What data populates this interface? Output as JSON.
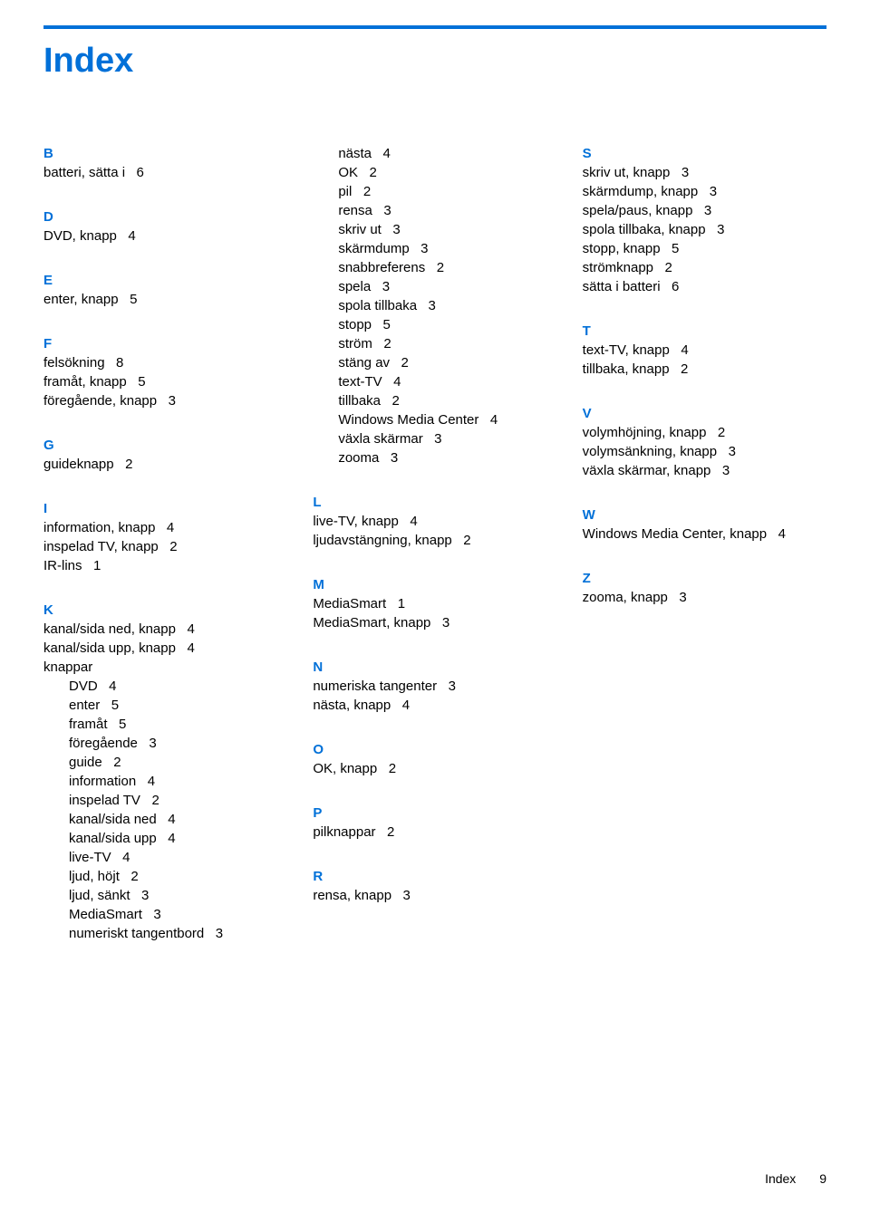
{
  "title": "Index",
  "brand_color": "#0070d8",
  "text_color": "#000000",
  "background_color": "#ffffff",
  "font_family": "Arial",
  "body_fontsize": 15,
  "title_fontsize": 38,
  "columns": [
    [
      {
        "type": "head",
        "text": "B"
      },
      {
        "type": "entry",
        "text": "batteri, sätta i   6"
      },
      {
        "type": "gap"
      },
      {
        "type": "head",
        "text": "D"
      },
      {
        "type": "entry",
        "text": "DVD, knapp   4"
      },
      {
        "type": "gap"
      },
      {
        "type": "head",
        "text": "E"
      },
      {
        "type": "entry",
        "text": "enter, knapp   5"
      },
      {
        "type": "gap"
      },
      {
        "type": "head",
        "text": "F"
      },
      {
        "type": "entry",
        "text": "felsökning   8"
      },
      {
        "type": "entry",
        "text": "framåt, knapp   5"
      },
      {
        "type": "entry",
        "text": "föregående, knapp   3"
      },
      {
        "type": "gap"
      },
      {
        "type": "head",
        "text": "G"
      },
      {
        "type": "entry",
        "text": "guideknapp   2"
      },
      {
        "type": "gap"
      },
      {
        "type": "head",
        "text": "I"
      },
      {
        "type": "entry",
        "text": "information, knapp   4"
      },
      {
        "type": "entry",
        "text": "inspelad TV, knapp   2"
      },
      {
        "type": "entry",
        "text": "IR-lins   1"
      },
      {
        "type": "gap"
      },
      {
        "type": "head",
        "text": "K"
      },
      {
        "type": "entry",
        "text": "kanal/sida ned, knapp   4"
      },
      {
        "type": "entry",
        "text": "kanal/sida upp, knapp   4"
      },
      {
        "type": "entry",
        "text": "knappar"
      },
      {
        "type": "sub",
        "text": "DVD   4"
      },
      {
        "type": "sub",
        "text": "enter   5"
      },
      {
        "type": "sub",
        "text": "framåt   5"
      },
      {
        "type": "sub",
        "text": "föregående   3"
      },
      {
        "type": "sub",
        "text": "guide   2"
      },
      {
        "type": "sub",
        "text": "information   4"
      },
      {
        "type": "sub",
        "text": "inspelad TV   2"
      },
      {
        "type": "sub",
        "text": "kanal/sida ned   4"
      },
      {
        "type": "sub",
        "text": "kanal/sida upp   4"
      },
      {
        "type": "sub",
        "text": "live-TV   4"
      },
      {
        "type": "sub",
        "text": "ljud, höjt   2"
      },
      {
        "type": "sub",
        "text": "ljud, sänkt   3"
      },
      {
        "type": "sub",
        "text": "MediaSmart   3"
      },
      {
        "type": "sub",
        "text": "numeriskt tangentbord   3"
      }
    ],
    [
      {
        "type": "sub",
        "text": "nästa   4"
      },
      {
        "type": "sub",
        "text": "OK   2"
      },
      {
        "type": "sub",
        "text": "pil   2"
      },
      {
        "type": "sub",
        "text": "rensa   3"
      },
      {
        "type": "sub",
        "text": "skriv ut   3"
      },
      {
        "type": "sub",
        "text": "skärmdump   3"
      },
      {
        "type": "sub",
        "text": "snabbreferens   2"
      },
      {
        "type": "sub",
        "text": "spela   3"
      },
      {
        "type": "sub",
        "text": "spola tillbaka   3"
      },
      {
        "type": "sub",
        "text": "stopp   5"
      },
      {
        "type": "sub",
        "text": "ström   2"
      },
      {
        "type": "sub",
        "text": "stäng av   2"
      },
      {
        "type": "sub",
        "text": "text-TV   4"
      },
      {
        "type": "sub",
        "text": "tillbaka   2"
      },
      {
        "type": "sub",
        "text": "Windows Media Center   4"
      },
      {
        "type": "sub",
        "text": "växla skärmar   3"
      },
      {
        "type": "sub",
        "text": "zooma   3"
      },
      {
        "type": "gap"
      },
      {
        "type": "head",
        "text": "L"
      },
      {
        "type": "entry",
        "text": "live-TV, knapp   4"
      },
      {
        "type": "entry",
        "text": "ljudavstängning, knapp   2"
      },
      {
        "type": "gap"
      },
      {
        "type": "head",
        "text": "M"
      },
      {
        "type": "entry",
        "text": "MediaSmart   1"
      },
      {
        "type": "entry",
        "text": "MediaSmart, knapp   3"
      },
      {
        "type": "gap"
      },
      {
        "type": "head",
        "text": "N"
      },
      {
        "type": "entry",
        "text": "numeriska tangenter   3"
      },
      {
        "type": "entry",
        "text": "nästa, knapp   4"
      },
      {
        "type": "gap"
      },
      {
        "type": "head",
        "text": "O"
      },
      {
        "type": "entry",
        "text": "OK, knapp   2"
      },
      {
        "type": "gap"
      },
      {
        "type": "head",
        "text": "P"
      },
      {
        "type": "entry",
        "text": "pilknappar   2"
      },
      {
        "type": "gap"
      },
      {
        "type": "head",
        "text": "R"
      },
      {
        "type": "entry",
        "text": "rensa, knapp   3"
      }
    ],
    [
      {
        "type": "head",
        "text": "S"
      },
      {
        "type": "entry",
        "text": "skriv ut, knapp   3"
      },
      {
        "type": "entry",
        "text": "skärmdump, knapp   3"
      },
      {
        "type": "entry",
        "text": "spela/paus, knapp   3"
      },
      {
        "type": "entry",
        "text": "spola tillbaka, knapp   3"
      },
      {
        "type": "entry",
        "text": "stopp, knapp   5"
      },
      {
        "type": "entry",
        "text": "strömknapp   2"
      },
      {
        "type": "entry",
        "text": "sätta i batteri   6"
      },
      {
        "type": "gap"
      },
      {
        "type": "head",
        "text": "T"
      },
      {
        "type": "entry",
        "text": "text-TV, knapp   4"
      },
      {
        "type": "entry",
        "text": "tillbaka, knapp   2"
      },
      {
        "type": "gap"
      },
      {
        "type": "head",
        "text": "V"
      },
      {
        "type": "entry",
        "text": "volymhöjning, knapp   2"
      },
      {
        "type": "entry",
        "text": "volymsänkning, knapp   3"
      },
      {
        "type": "entry",
        "text": "växla skärmar, knapp   3"
      },
      {
        "type": "gap"
      },
      {
        "type": "head",
        "text": "W"
      },
      {
        "type": "entry",
        "text": "Windows Media Center, knapp   4"
      },
      {
        "type": "gap"
      },
      {
        "type": "head",
        "text": "Z"
      },
      {
        "type": "entry",
        "text": "zooma, knapp   3"
      }
    ]
  ],
  "footer": {
    "label": "Index",
    "page": "9"
  }
}
